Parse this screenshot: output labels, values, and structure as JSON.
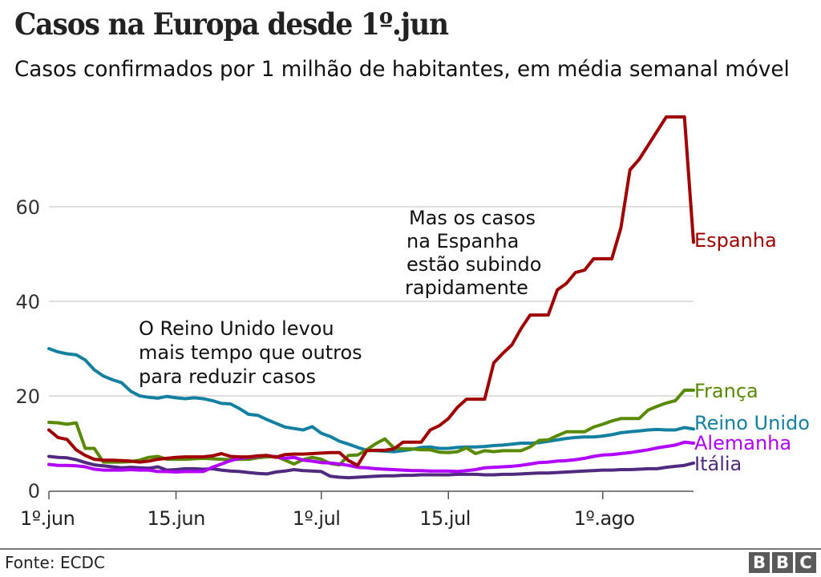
{
  "header": {
    "title": "Casos na Europa desde 1º.jun",
    "subtitle": "Casos confirmados por 1 milhão de habitantes, em média semanal móvel"
  },
  "footer": {
    "source": "Fonte: ECDC",
    "logo_letters": [
      "B",
      "B",
      "C"
    ]
  },
  "chart_data": {
    "type": "line",
    "title": "Casos na Europa desde 1º.jun",
    "subtitle": "Casos confirmados por 1 milhão de habitantes, em média semanal móvel",
    "xlabel": "",
    "ylabel": "",
    "x_start": "1º.jun",
    "x_unit": "days since 1 June",
    "x_range": [
      0,
      71
    ],
    "ylim": [
      0,
      80
    ],
    "yticks": [
      0,
      20,
      40,
      60
    ],
    "xticks": [
      {
        "day": 0,
        "label": "1º.jun"
      },
      {
        "day": 14,
        "label": "15.jun"
      },
      {
        "day": 30,
        "label": "1º.jul"
      },
      {
        "day": 44,
        "label": "15.jul"
      },
      {
        "day": 61,
        "label": "1º.ago"
      }
    ],
    "grid": "horizontal",
    "legend": "direct labels at line ends (right)",
    "annotations": [
      {
        "lines": [
          "O Reino Unido levou",
          "mais tempo  que outros",
          "para reduzir casos"
        ],
        "day": 10,
        "value": 35
      },
      {
        "lines": [
          "Mas os casos",
          "na Espanha",
          "estão subindo",
          "rapidamente"
        ],
        "day": 40,
        "value": 58
      }
    ],
    "series": [
      {
        "name": "Espanha",
        "color": "#a00000",
        "values": [
          12.8,
          11.2,
          10.8,
          8.6,
          7.4,
          6.6,
          6.4,
          6.4,
          6.3,
          6.2,
          6.0,
          6.2,
          6.6,
          6.8,
          7.0,
          7.1,
          7.1,
          7.1,
          7.3,
          7.8,
          7.2,
          7.1,
          7.1,
          7.3,
          7.4,
          7.0,
          7.6,
          7.7,
          7.7,
          7.8,
          7.9,
          8.0,
          8.0,
          6.3,
          5.3,
          8.4,
          8.5,
          8.5,
          8.8,
          10.2,
          10.2,
          10.2,
          12.8,
          13.7,
          15.2,
          17.6,
          19.3,
          19.3,
          19.3,
          27.0,
          29.0,
          30.8,
          34.2,
          37.1,
          37.1,
          37.1,
          42.4,
          43.8,
          46.1,
          46.6,
          49.0,
          49.0,
          49.0,
          55.5,
          67.8,
          70.0,
          73.0,
          76.0,
          79.0,
          79.0,
          79.0,
          52.5
        ]
      },
      {
        "name": "França",
        "color": "#588a00",
        "values": [
          14.4,
          14.3,
          14.0,
          14.3,
          8.9,
          8.9,
          6.0,
          6.0,
          6.0,
          6.1,
          6.4,
          7.0,
          7.2,
          6.6,
          6.6,
          6.6,
          6.7,
          6.8,
          6.7,
          6.6,
          6.5,
          6.6,
          6.6,
          6.9,
          7.1,
          7.2,
          6.4,
          5.6,
          6.5,
          7.0,
          6.6,
          5.7,
          5.4,
          7.4,
          7.5,
          8.6,
          9.9,
          10.9,
          9.0,
          8.8,
          8.8,
          8.6,
          8.6,
          8.1,
          8.0,
          8.2,
          9.0,
          7.8,
          8.4,
          8.2,
          8.4,
          8.4,
          8.4,
          9.2,
          10.6,
          10.7,
          11.6,
          12.4,
          12.4,
          12.4,
          13.4,
          14.0,
          14.7,
          15.2,
          15.2,
          15.2,
          17.0,
          17.8,
          18.5,
          19.0,
          21.2,
          21.2
        ]
      },
      {
        "name": "Reino Unido",
        "color": "#1380a1",
        "values": [
          30.0,
          29.3,
          28.9,
          28.7,
          27.6,
          25.5,
          24.2,
          23.4,
          22.8,
          21.0,
          20.0,
          19.7,
          19.5,
          19.9,
          19.6,
          19.4,
          19.6,
          19.4,
          19.0,
          18.4,
          18.3,
          17.3,
          16.1,
          15.9,
          15.0,
          14.2,
          13.4,
          13.1,
          12.8,
          13.5,
          12.1,
          11.4,
          10.4,
          9.8,
          9.1,
          8.5,
          8.4,
          8.3,
          8.2,
          8.4,
          8.7,
          9.1,
          9.2,
          8.9,
          8.9,
          9.1,
          9.2,
          9.2,
          9.3,
          9.5,
          9.6,
          9.8,
          10.0,
          10.0,
          10.1,
          10.4,
          10.7,
          11.0,
          11.2,
          11.3,
          11.3,
          11.5,
          11.8,
          12.2,
          12.4,
          12.6,
          12.8,
          12.9,
          12.8,
          12.8,
          13.3,
          13.0
        ]
      },
      {
        "name": "Alemanha",
        "color": "#b100ff",
        "values": [
          5.5,
          5.3,
          5.3,
          5.2,
          5.0,
          4.5,
          4.3,
          4.3,
          4.3,
          4.4,
          4.3,
          4.3,
          4.0,
          4.0,
          3.9,
          4.0,
          4.0,
          4.0,
          4.9,
          5.6,
          6.3,
          6.8,
          7.0,
          7.2,
          7.4,
          7.1,
          6.8,
          7.0,
          6.4,
          6.2,
          5.9,
          5.8,
          5.6,
          5.3,
          4.9,
          4.8,
          4.6,
          4.5,
          4.4,
          4.3,
          4.2,
          4.2,
          4.1,
          4.1,
          4.1,
          4.0,
          4.2,
          4.4,
          4.8,
          4.9,
          5.0,
          5.1,
          5.3,
          5.6,
          5.9,
          6.0,
          6.2,
          6.3,
          6.5,
          6.8,
          7.2,
          7.5,
          7.6,
          7.8,
          8.0,
          8.3,
          8.6,
          9.0,
          9.3,
          9.6,
          10.2,
          10.0
        ]
      },
      {
        "name": "Itália",
        "color": "#4f2a7f",
        "values": [
          7.2,
          7.0,
          6.9,
          6.5,
          5.9,
          5.4,
          5.2,
          5.0,
          4.8,
          4.9,
          4.8,
          4.7,
          5.0,
          4.3,
          4.4,
          4.6,
          4.6,
          4.5,
          4.6,
          4.3,
          4.1,
          4.0,
          3.8,
          3.6,
          3.5,
          3.9,
          4.1,
          4.4,
          4.2,
          4.1,
          4.0,
          3.0,
          2.8,
          2.7,
          2.8,
          2.9,
          3.0,
          3.1,
          3.1,
          3.2,
          3.2,
          3.3,
          3.3,
          3.3,
          3.3,
          3.4,
          3.4,
          3.4,
          3.3,
          3.3,
          3.4,
          3.4,
          3.5,
          3.6,
          3.7,
          3.7,
          3.8,
          3.9,
          4.0,
          4.1,
          4.2,
          4.3,
          4.3,
          4.4,
          4.4,
          4.5,
          4.6,
          4.6,
          4.9,
          5.1,
          5.3,
          5.8
        ]
      }
    ]
  }
}
